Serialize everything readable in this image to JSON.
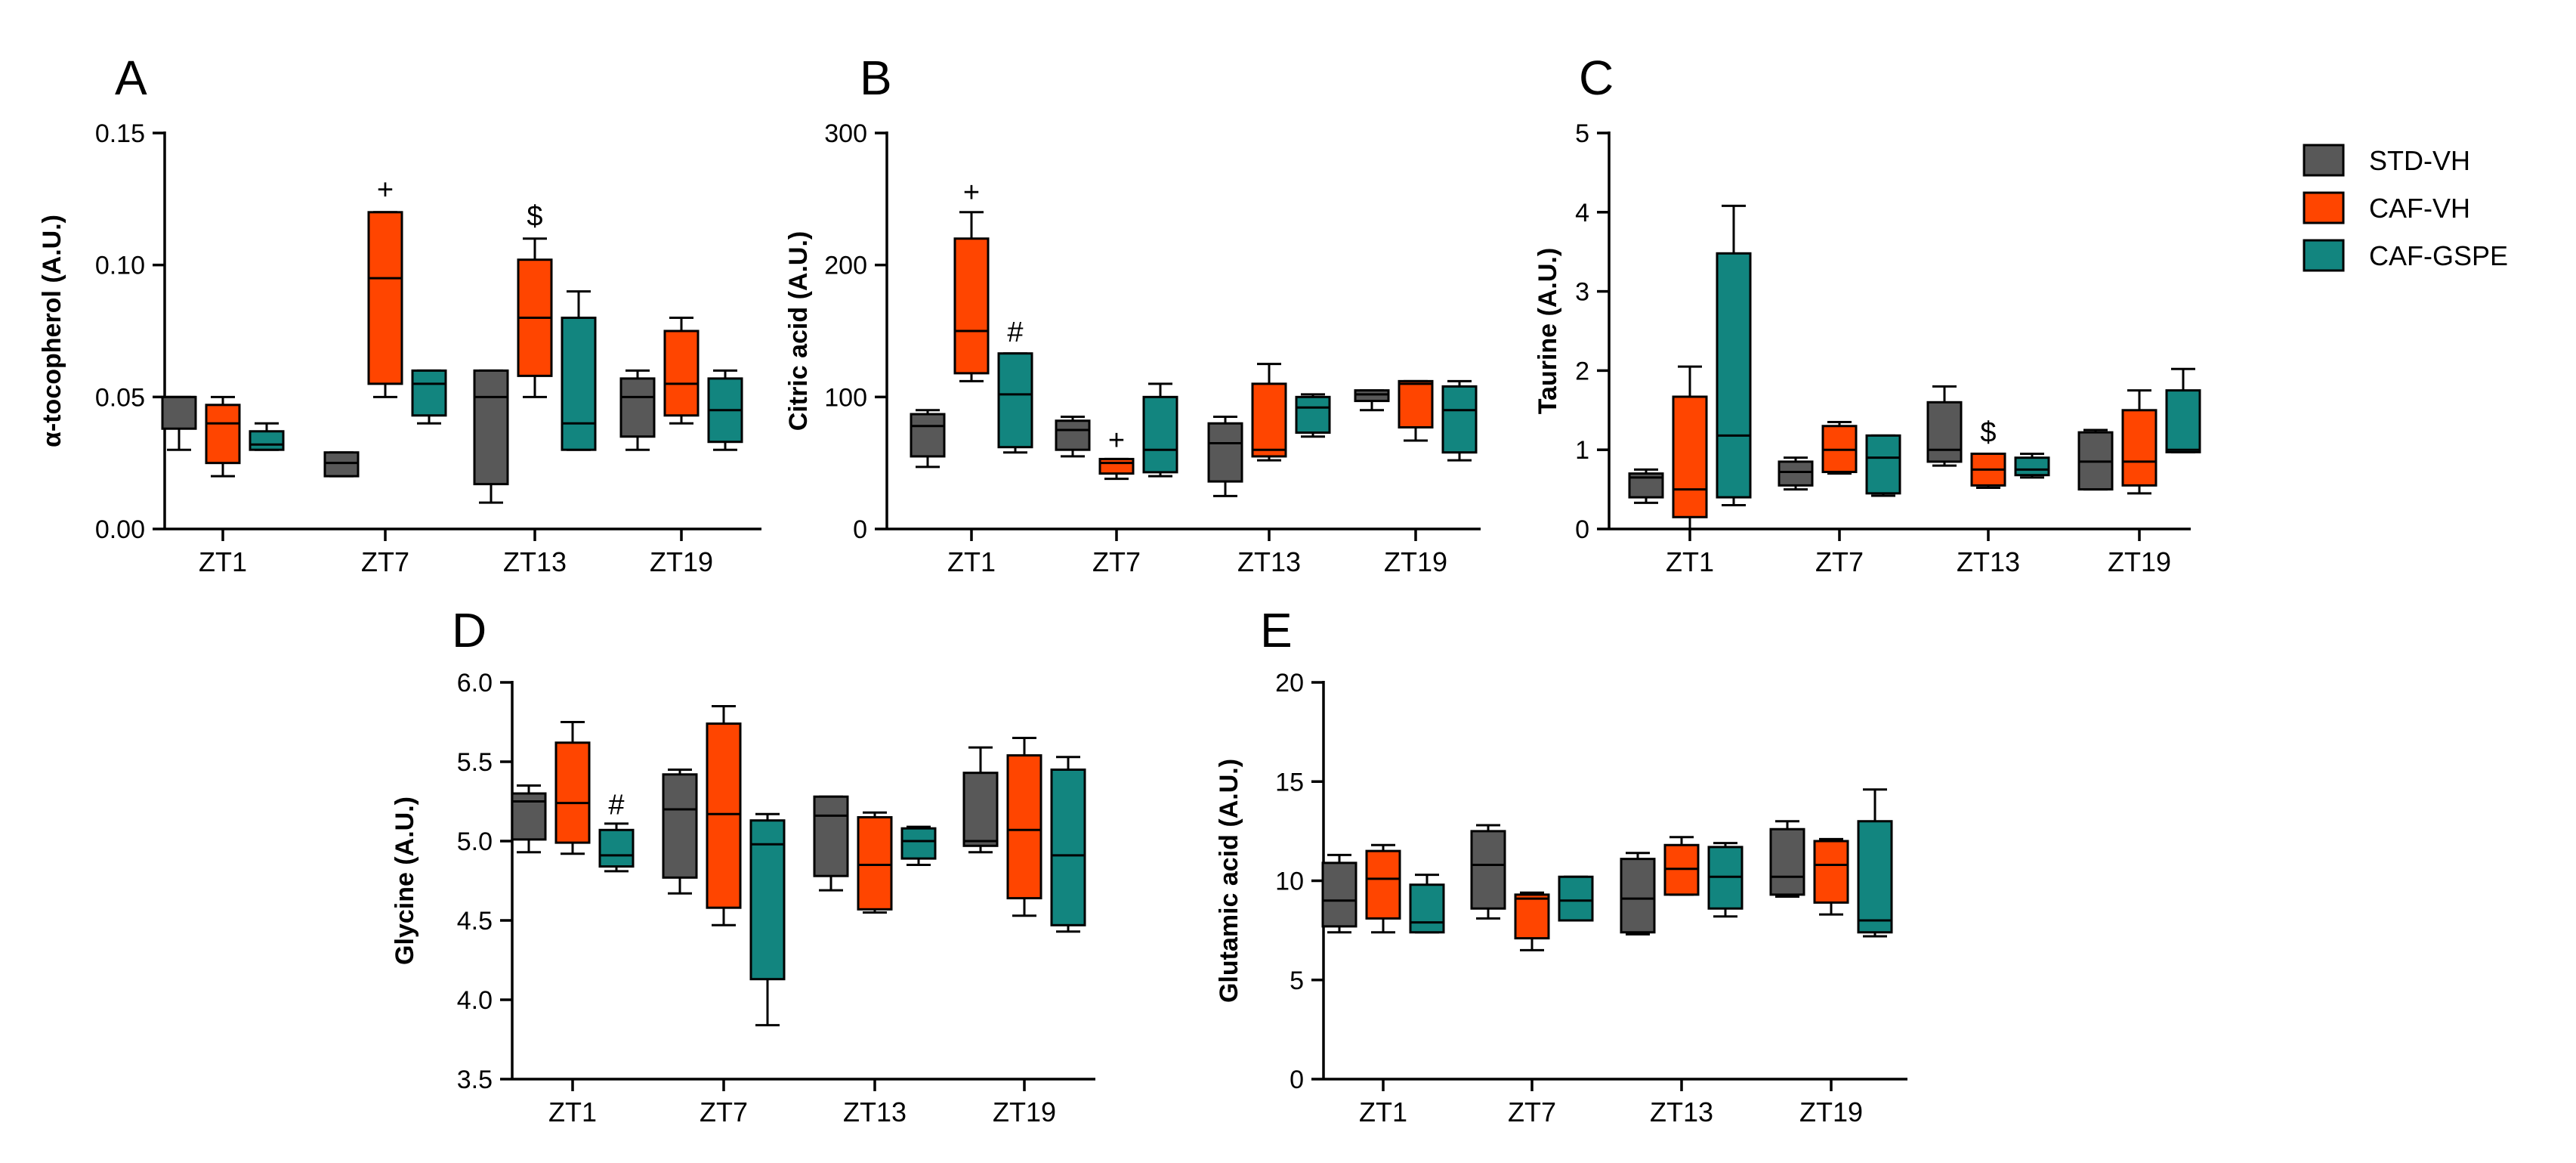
{
  "legend": {
    "items": [
      {
        "label": "STD-VH",
        "color": "#585858"
      },
      {
        "label": "CAF-VH",
        "color": "#ff4500"
      },
      {
        "label": "CAF-GSPE",
        "color": "#12857f"
      }
    ]
  },
  "chart_data": [
    {
      "panel": "A",
      "type": "box",
      "ylabel": "α-tocopherol (A.U.)",
      "ylim": [
        0,
        0.15
      ],
      "yticks": [
        0,
        0.05,
        0.1,
        0.15
      ],
      "ytick_labels": [
        "0.00",
        "0.05",
        "0.10",
        "0.15"
      ],
      "categories": [
        "ZT1",
        "ZT7",
        "ZT13",
        "ZT19"
      ],
      "series": [
        {
          "name": "STD-VH",
          "boxes": [
            {
              "min": 0.03,
              "q1": 0.038,
              "median": 0.05,
              "q3": 0.05,
              "max": 0.05
            },
            {
              "min": 0.02,
              "q1": 0.02,
              "median": 0.025,
              "q3": 0.029,
              "max": 0.029
            },
            {
              "min": 0.01,
              "q1": 0.017,
              "median": 0.05,
              "q3": 0.06,
              "max": 0.06
            },
            {
              "min": 0.03,
              "q1": 0.035,
              "median": 0.05,
              "q3": 0.057,
              "max": 0.06
            }
          ]
        },
        {
          "name": "CAF-VH",
          "boxes": [
            {
              "min": 0.02,
              "q1": 0.025,
              "median": 0.04,
              "q3": 0.047,
              "max": 0.05
            },
            {
              "min": 0.05,
              "q1": 0.055,
              "median": 0.095,
              "q3": 0.12,
              "max": 0.12
            },
            {
              "min": 0.05,
              "q1": 0.058,
              "median": 0.08,
              "q3": 0.102,
              "max": 0.11
            },
            {
              "min": 0.04,
              "q1": 0.043,
              "median": 0.055,
              "q3": 0.075,
              "max": 0.08
            }
          ]
        },
        {
          "name": "CAF-GSPE",
          "boxes": [
            {
              "min": 0.03,
              "q1": 0.03,
              "median": 0.032,
              "q3": 0.037,
              "max": 0.04
            },
            {
              "min": 0.04,
              "q1": 0.043,
              "median": 0.055,
              "q3": 0.06,
              "max": 0.06
            },
            {
              "min": 0.03,
              "q1": 0.03,
              "median": 0.04,
              "q3": 0.08,
              "max": 0.09
            },
            {
              "min": 0.03,
              "q1": 0.033,
              "median": 0.045,
              "q3": 0.057,
              "max": 0.06
            }
          ]
        }
      ],
      "annotations": [
        {
          "text": "+",
          "category": "ZT7",
          "series": "CAF-VH",
          "y": 0.125
        },
        {
          "text": "$",
          "category": "ZT13",
          "series": "CAF-VH",
          "y": 0.115
        }
      ]
    },
    {
      "panel": "B",
      "type": "box",
      "ylabel": "Citric acid (A.U.)",
      "ylim": [
        0,
        300
      ],
      "yticks": [
        0,
        100,
        200,
        300
      ],
      "ytick_labels": [
        "0",
        "100",
        "200",
        "300"
      ],
      "categories": [
        "ZT1",
        "ZT7",
        "ZT13",
        "ZT19"
      ],
      "series": [
        {
          "name": "STD-VH",
          "boxes": [
            {
              "min": 47,
              "q1": 55,
              "median": 78,
              "q3": 87,
              "max": 90
            },
            {
              "min": 55,
              "q1": 60,
              "median": 75,
              "q3": 82,
              "max": 85
            },
            {
              "min": 25,
              "q1": 36,
              "median": 65,
              "q3": 80,
              "max": 85
            },
            {
              "min": 90,
              "q1": 97,
              "median": 102,
              "q3": 105,
              "max": 105
            }
          ]
        },
        {
          "name": "CAF-VH",
          "boxes": [
            {
              "min": 112,
              "q1": 118,
              "median": 150,
              "q3": 220,
              "max": 240
            },
            {
              "min": 38,
              "q1": 42,
              "median": 50,
              "q3": 53,
              "max": 53
            },
            {
              "min": 52,
              "q1": 55,
              "median": 60,
              "q3": 110,
              "max": 125
            },
            {
              "min": 67,
              "q1": 77,
              "median": 110,
              "q3": 112,
              "max": 112
            }
          ]
        },
        {
          "name": "CAF-GSPE",
          "boxes": [
            {
              "min": 58,
              "q1": 62,
              "median": 102,
              "q3": 133,
              "max": 133
            },
            {
              "min": 40,
              "q1": 43,
              "median": 60,
              "q3": 100,
              "max": 110
            },
            {
              "min": 70,
              "q1": 73,
              "median": 92,
              "q3": 100,
              "max": 102
            },
            {
              "min": 52,
              "q1": 58,
              "median": 90,
              "q3": 108,
              "max": 112
            }
          ]
        }
      ],
      "annotations": [
        {
          "text": "+",
          "category": "ZT1",
          "series": "CAF-VH",
          "y": 248
        },
        {
          "text": "#",
          "category": "ZT1",
          "series": "CAF-GSPE",
          "y": 142
        },
        {
          "text": "+",
          "category": "ZT7",
          "series": "CAF-VH",
          "y": 60
        }
      ]
    },
    {
      "panel": "C",
      "type": "box",
      "ylabel": "Taurine (A.U.)",
      "ylim": [
        0,
        5
      ],
      "yticks": [
        0,
        1,
        2,
        3,
        4,
        5
      ],
      "ytick_labels": [
        "0",
        "1",
        "2",
        "3",
        "4",
        "5"
      ],
      "categories": [
        "ZT1",
        "ZT7",
        "ZT13",
        "ZT19"
      ],
      "series": [
        {
          "name": "STD-VH",
          "boxes": [
            {
              "min": 0.33,
              "q1": 0.4,
              "median": 0.65,
              "q3": 0.7,
              "max": 0.75
            },
            {
              "min": 0.5,
              "q1": 0.55,
              "median": 0.72,
              "q3": 0.85,
              "max": 0.9
            },
            {
              "min": 0.8,
              "q1": 0.85,
              "median": 1.0,
              "q3": 1.6,
              "max": 1.8
            },
            {
              "min": 0.5,
              "q1": 0.5,
              "median": 0.85,
              "q3": 1.22,
              "max": 1.25
            }
          ]
        },
        {
          "name": "CAF-VH",
          "boxes": [
            {
              "min": 0.0,
              "q1": 0.15,
              "median": 0.5,
              "q3": 1.67,
              "max": 2.05
            },
            {
              "min": 0.7,
              "q1": 0.72,
              "median": 1.0,
              "q3": 1.3,
              "max": 1.35
            },
            {
              "min": 0.52,
              "q1": 0.55,
              "median": 0.75,
              "q3": 0.95,
              "max": 0.95
            },
            {
              "min": 0.45,
              "q1": 0.55,
              "median": 0.85,
              "q3": 1.5,
              "max": 1.75
            }
          ]
        },
        {
          "name": "CAF-GSPE",
          "boxes": [
            {
              "min": 0.3,
              "q1": 0.4,
              "median": 1.18,
              "q3": 3.48,
              "max": 4.08
            },
            {
              "min": 0.42,
              "q1": 0.45,
              "median": 0.9,
              "q3": 1.18,
              "max": 1.18
            },
            {
              "min": 0.65,
              "q1": 0.68,
              "median": 0.75,
              "q3": 0.9,
              "max": 0.95
            },
            {
              "min": 0.97,
              "q1": 0.97,
              "median": 1.0,
              "q3": 1.75,
              "max": 2.02
            }
          ]
        }
      ],
      "annotations": [
        {
          "text": "$",
          "category": "ZT13",
          "series": "CAF-VH",
          "y": 1.1
        }
      ]
    },
    {
      "panel": "D",
      "type": "box",
      "ylabel": "Glycine (A.U.)",
      "ylim": [
        3.5,
        6.0
      ],
      "yticks": [
        3.5,
        4.0,
        4.5,
        5.0,
        5.5,
        6.0
      ],
      "ytick_labels": [
        "3.5",
        "4.0",
        "4.5",
        "5.0",
        "5.5",
        "6.0"
      ],
      "categories": [
        "ZT1",
        "ZT7",
        "ZT13",
        "ZT19"
      ],
      "series": [
        {
          "name": "STD-VH",
          "boxes": [
            {
              "min": 4.93,
              "q1": 5.01,
              "median": 5.25,
              "q3": 5.3,
              "max": 5.35
            },
            {
              "min": 4.67,
              "q1": 4.77,
              "median": 5.2,
              "q3": 5.42,
              "max": 5.45
            },
            {
              "min": 4.69,
              "q1": 4.78,
              "median": 5.16,
              "q3": 5.28,
              "max": 5.28
            },
            {
              "min": 4.93,
              "q1": 4.97,
              "median": 5.0,
              "q3": 5.43,
              "max": 5.59
            }
          ]
        },
        {
          "name": "CAF-VH",
          "boxes": [
            {
              "min": 4.92,
              "q1": 4.99,
              "median": 5.24,
              "q3": 5.62,
              "max": 5.75
            },
            {
              "min": 4.47,
              "q1": 4.58,
              "median": 5.17,
              "q3": 5.74,
              "max": 5.85
            },
            {
              "min": 4.55,
              "q1": 4.57,
              "median": 4.85,
              "q3": 5.15,
              "max": 5.18
            },
            {
              "min": 4.53,
              "q1": 4.64,
              "median": 5.07,
              "q3": 5.54,
              "max": 5.65
            }
          ]
        },
        {
          "name": "CAF-GSPE",
          "boxes": [
            {
              "min": 4.81,
              "q1": 4.84,
              "median": 4.91,
              "q3": 5.07,
              "max": 5.11
            },
            {
              "min": 3.84,
              "q1": 4.13,
              "median": 4.98,
              "q3": 5.13,
              "max": 5.17
            },
            {
              "min": 4.85,
              "q1": 4.89,
              "median": 5.0,
              "q3": 5.08,
              "max": 5.09
            },
            {
              "min": 4.43,
              "q1": 4.47,
              "median": 4.91,
              "q3": 5.45,
              "max": 5.53
            }
          ]
        }
      ],
      "annotations": [
        {
          "text": "#",
          "category": "ZT1",
          "series": "CAF-GSPE",
          "y": 5.17
        }
      ]
    },
    {
      "panel": "E",
      "type": "box",
      "ylabel": "Glutamic acid (A.U.)",
      "ylim": [
        0,
        20
      ],
      "yticks": [
        0,
        5,
        10,
        15,
        20
      ],
      "ytick_labels": [
        "0",
        "5",
        "10",
        "15",
        "20"
      ],
      "categories": [
        "ZT1",
        "ZT7",
        "ZT13",
        "ZT19"
      ],
      "series": [
        {
          "name": "STD-VH",
          "boxes": [
            {
              "min": 7.4,
              "q1": 7.7,
              "median": 9.0,
              "q3": 10.9,
              "max": 11.3
            },
            {
              "min": 8.1,
              "q1": 8.6,
              "median": 10.8,
              "q3": 12.5,
              "max": 12.8
            },
            {
              "min": 7.3,
              "q1": 7.4,
              "median": 9.1,
              "q3": 11.1,
              "max": 11.4
            },
            {
              "min": 9.2,
              "q1": 9.3,
              "median": 10.2,
              "q3": 12.6,
              "max": 13.0
            }
          ]
        },
        {
          "name": "CAF-VH",
          "boxes": [
            {
              "min": 7.4,
              "q1": 8.1,
              "median": 10.1,
              "q3": 11.5,
              "max": 11.8
            },
            {
              "min": 6.5,
              "q1": 7.1,
              "median": 9.1,
              "q3": 9.3,
              "max": 9.4
            },
            {
              "min": 9.3,
              "q1": 9.3,
              "median": 10.6,
              "q3": 11.8,
              "max": 12.2
            },
            {
              "min": 8.3,
              "q1": 8.9,
              "median": 10.8,
              "q3": 12.0,
              "max": 12.1
            }
          ]
        },
        {
          "name": "CAF-GSPE",
          "boxes": [
            {
              "min": 7.4,
              "q1": 7.4,
              "median": 7.9,
              "q3": 9.8,
              "max": 10.3
            },
            {
              "min": 8.0,
              "q1": 8.0,
              "median": 9.0,
              "q3": 10.2,
              "max": 10.2
            },
            {
              "min": 8.2,
              "q1": 8.6,
              "median": 10.2,
              "q3": 11.7,
              "max": 11.9
            },
            {
              "min": 7.2,
              "q1": 7.4,
              "median": 8.0,
              "q3": 13.0,
              "max": 14.6
            }
          ]
        }
      ],
      "annotations": []
    }
  ]
}
